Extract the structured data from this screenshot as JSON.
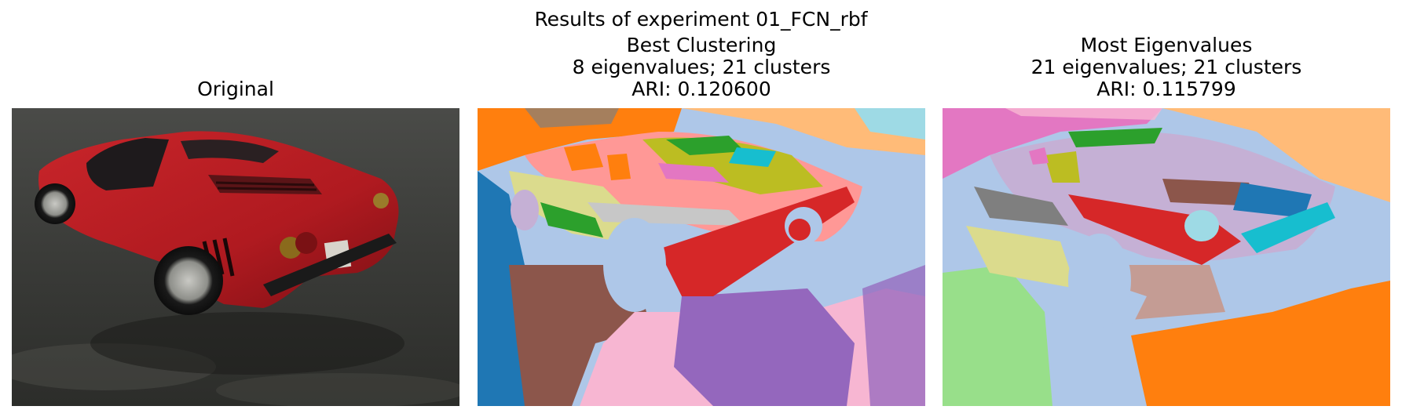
{
  "figure": {
    "title": "Results of experiment 01_FCN_rbf"
  },
  "panels": [
    {
      "id": "original",
      "title_lines": [
        "Original"
      ],
      "image_description": "photograph of a red sports car on wet asphalt"
    },
    {
      "id": "best",
      "title_lines": [
        "Best Clustering",
        "8 eigenvalues; 21 clusters",
        "ARI: 0.120600"
      ]
    },
    {
      "id": "most",
      "title_lines": [
        "Most Eigenvalues",
        "21 eigenvalues; 21 clusters",
        "ARI: 0.115799"
      ]
    }
  ],
  "palette": {
    "blue": "#1f77b4",
    "light_blue": "#aec7e8",
    "orange": "#ff7f0e",
    "light_orange": "#ffbb78",
    "green": "#2ca02c",
    "light_green": "#98df8a",
    "red": "#d62728",
    "pink_red": "#ff9896",
    "purple": "#9467bd",
    "lavender": "#c5b0d5",
    "brown": "#8c564b",
    "tan": "#c49c94",
    "magenta": "#e377c2",
    "pink": "#f7b6d2",
    "gray": "#7f7f7f",
    "light_gray": "#c7c7c7",
    "olive": "#bcbd22",
    "khaki": "#dbdb8d",
    "cyan": "#17becf",
    "pale_cyan": "#9edae5"
  }
}
